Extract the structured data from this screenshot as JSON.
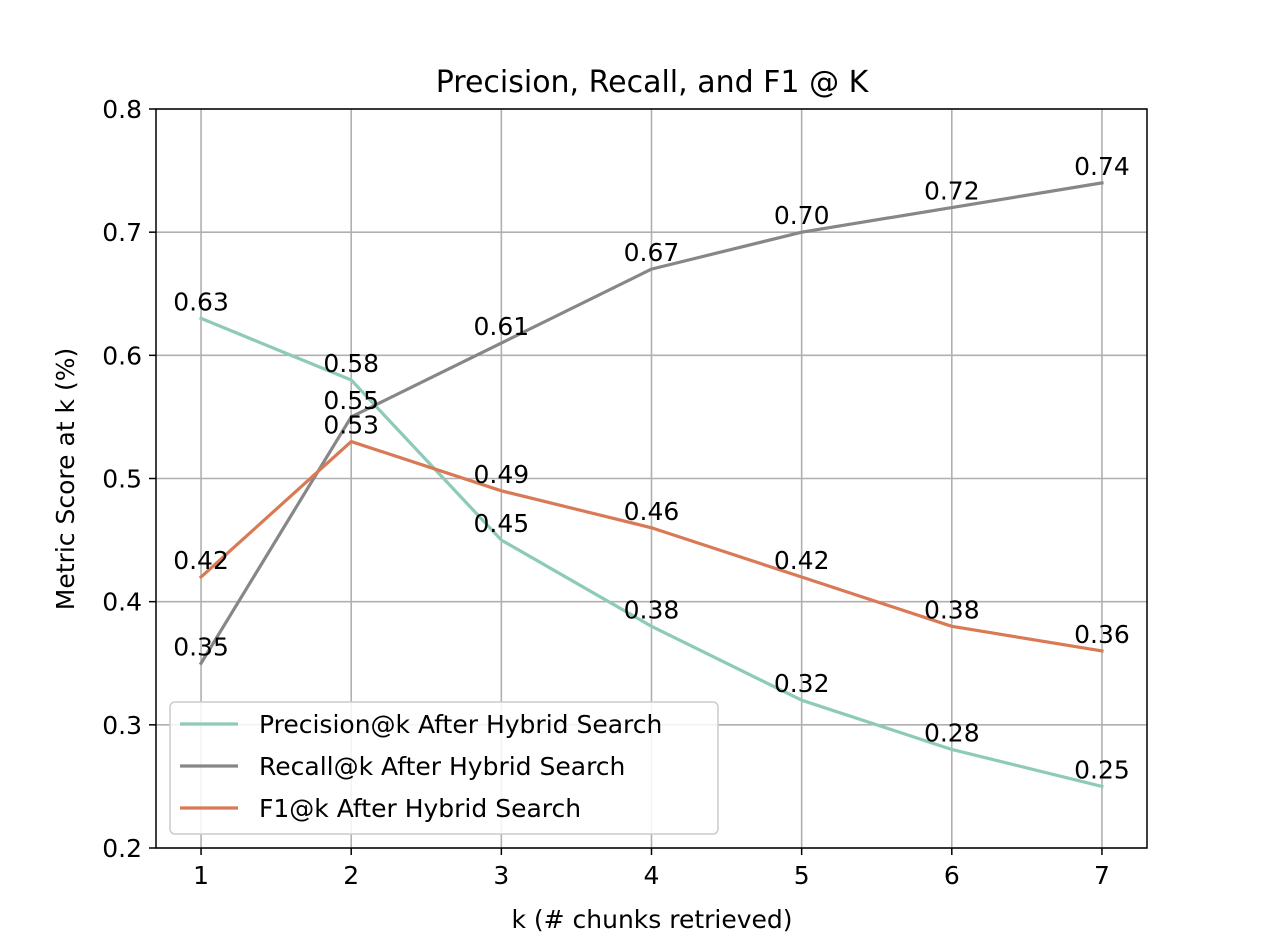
{
  "chart_data": {
    "type": "line",
    "title": "Precision, Recall, and F1 @ K",
    "xlabel": "k (# chunks retrieved)",
    "ylabel": "Metric Score at k (%)",
    "x": [
      1,
      2,
      3,
      4,
      5,
      6,
      7
    ],
    "x_ticks": [
      "1",
      "2",
      "3",
      "4",
      "5",
      "6",
      "7"
    ],
    "ylim": [
      0.2,
      0.8
    ],
    "y_ticks": [
      "0.2",
      "0.3",
      "0.4",
      "0.5",
      "0.6",
      "0.7",
      "0.8"
    ],
    "grid": true,
    "legend_position": "lower-left",
    "series": [
      {
        "name": "Precision@k After Hybrid Search",
        "color": "#8dcbb7",
        "values": [
          0.63,
          0.58,
          0.45,
          0.38,
          0.32,
          0.28,
          0.25
        ],
        "labels": [
          "0.63",
          "0.58",
          "0.45",
          "0.38",
          "0.32",
          "0.28",
          "0.25"
        ]
      },
      {
        "name": "Recall@k After Hybrid Search",
        "color": "#878787",
        "values": [
          0.35,
          0.55,
          0.61,
          0.67,
          0.7,
          0.72,
          0.74
        ],
        "labels": [
          "0.35",
          "0.55",
          "0.61",
          "0.67",
          "0.70",
          "0.72",
          "0.74"
        ]
      },
      {
        "name": "F1@k After Hybrid Search",
        "color": "#d97a56",
        "values": [
          0.42,
          0.53,
          0.49,
          0.46,
          0.42,
          0.38,
          0.36
        ],
        "labels": [
          "0.42",
          "0.53",
          "0.49",
          "0.46",
          "0.42",
          "0.38",
          "0.36"
        ]
      }
    ]
  }
}
